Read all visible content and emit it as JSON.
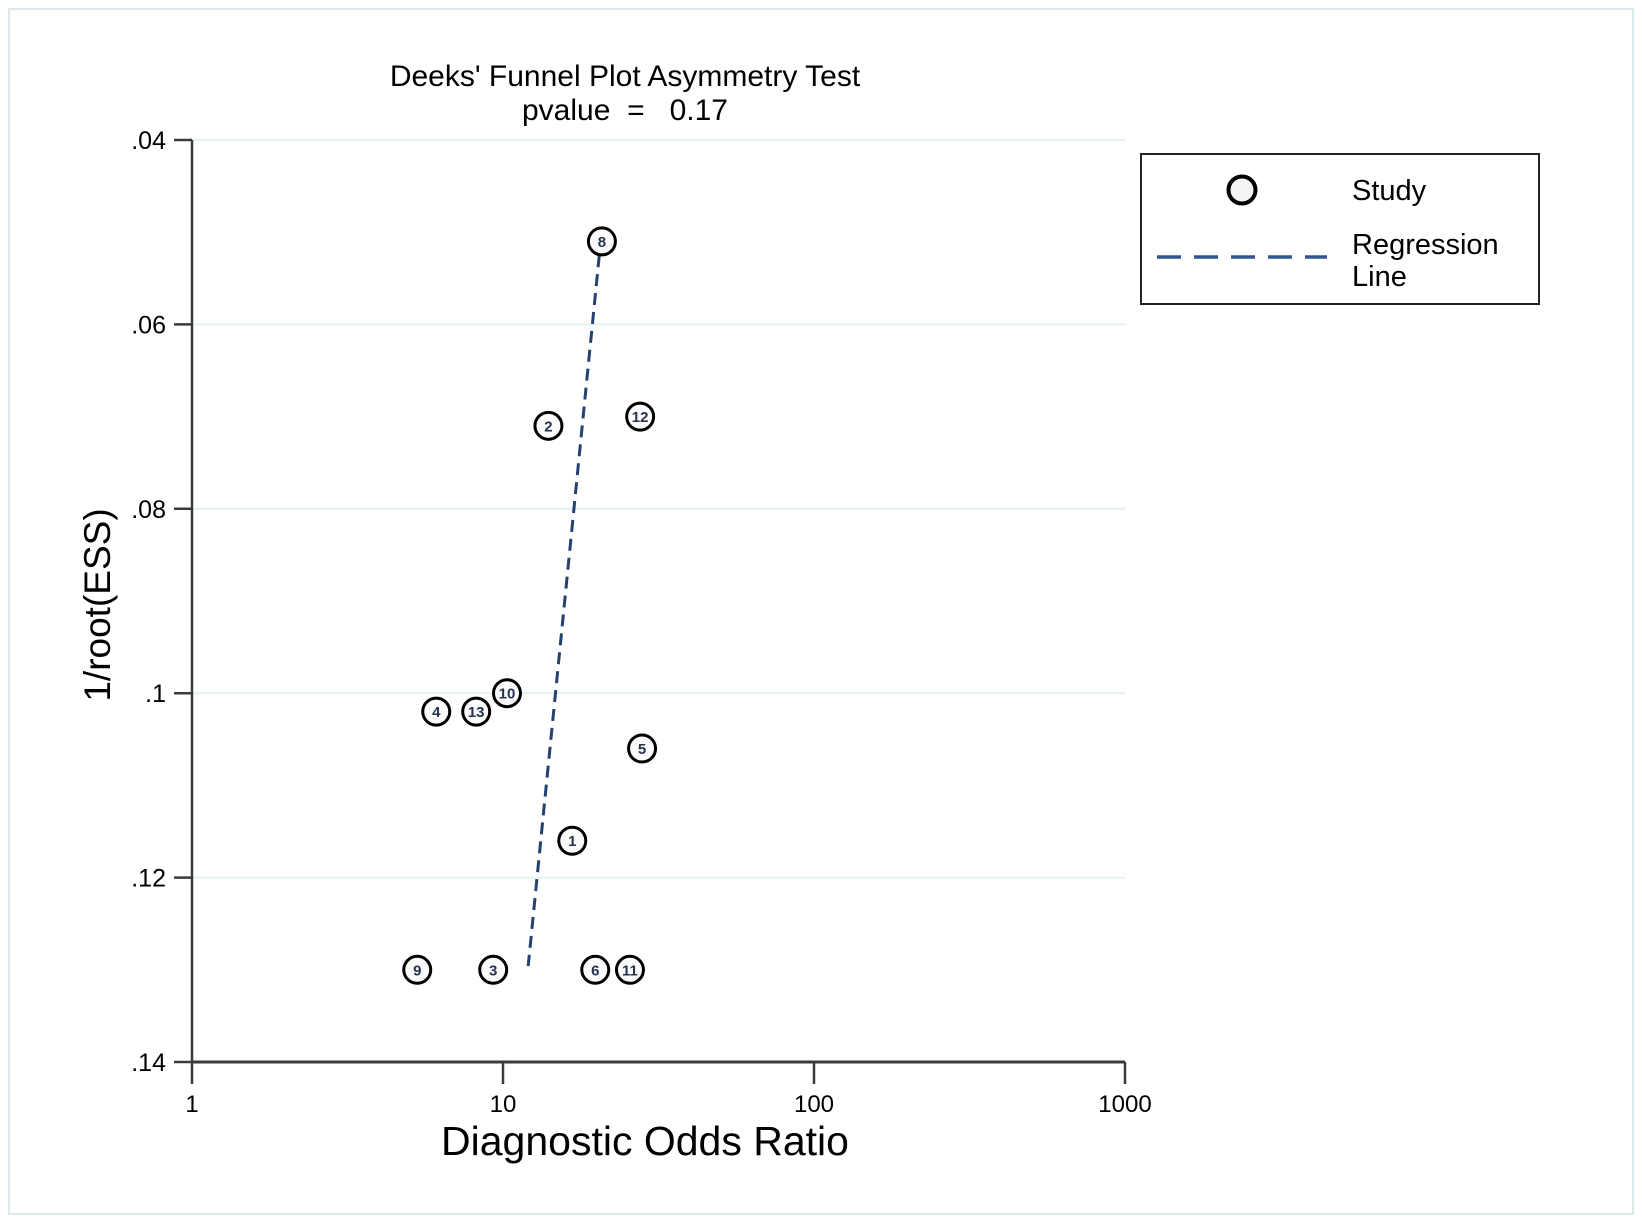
{
  "chart_data": {
    "type": "scatter",
    "title": "Deeks' Funnel Plot Asymmetry Test",
    "subtitle": "pvalue  =   0.17",
    "p_value": "0.17",
    "xlabel": "Diagnostic Odds Ratio",
    "ylabel": "1/root(ESS)",
    "x_scale": "log10",
    "xlim": [
      1,
      1000
    ],
    "ylim": [
      0.04,
      0.14
    ],
    "y_axis_inverted": true,
    "grid": "horizontal",
    "x_ticks": [
      {
        "value": 1,
        "label": "1"
      },
      {
        "value": 10,
        "label": "10"
      },
      {
        "value": 100,
        "label": "100"
      },
      {
        "value": 1000,
        "label": "1000"
      }
    ],
    "y_ticks": [
      {
        "value": 0.04,
        "label": ".04"
      },
      {
        "value": 0.06,
        "label": ".06"
      },
      {
        "value": 0.08,
        "label": ".08"
      },
      {
        "value": 0.1,
        "label": ".1"
      },
      {
        "value": 0.12,
        "label": ".12"
      },
      {
        "value": 0.14,
        "label": ".14"
      }
    ],
    "points": [
      {
        "study": "8",
        "dor": 20.8,
        "inv_root_ess": 0.051
      },
      {
        "study": "2",
        "dor": 14.0,
        "inv_root_ess": 0.071
      },
      {
        "study": "12",
        "dor": 27.6,
        "inv_root_ess": 0.07
      },
      {
        "study": "4",
        "dor": 6.1,
        "inv_root_ess": 0.102
      },
      {
        "study": "13",
        "dor": 8.2,
        "inv_root_ess": 0.102
      },
      {
        "study": "10",
        "dor": 10.3,
        "inv_root_ess": 0.1
      },
      {
        "study": "5",
        "dor": 28.0,
        "inv_root_ess": 0.106
      },
      {
        "study": "1",
        "dor": 16.7,
        "inv_root_ess": 0.116
      },
      {
        "study": "9",
        "dor": 5.3,
        "inv_root_ess": 0.13
      },
      {
        "study": "3",
        "dor": 9.3,
        "inv_root_ess": 0.13
      },
      {
        "study": "6",
        "dor": 19.8,
        "inv_root_ess": 0.13
      },
      {
        "study": "11",
        "dor": 25.6,
        "inv_root_ess": 0.13
      }
    ],
    "regression_line": {
      "x1_dor": 20.4,
      "y1_ess": 0.0525,
      "x2_dor": 12.05,
      "y2_ess": 0.1296
    },
    "legend": {
      "position": "top-right",
      "entries": [
        {
          "marker": "circle",
          "label": "Study"
        },
        {
          "marker": "dashed-line",
          "label": "Regression Line"
        }
      ]
    }
  },
  "legend_labels": {
    "study": "Study",
    "regression": "Regression Line"
  },
  "colors": {
    "axis": "#3a3a3a",
    "gridline": "#e4f0f1",
    "regression_line": "#24426e",
    "legend_dash": "#30558f",
    "marker_stroke": "#000000",
    "marker_fill": "#fbfbfb",
    "marker_number": "#26324f",
    "text": "#000000",
    "frame_border": "#dce9ec"
  }
}
